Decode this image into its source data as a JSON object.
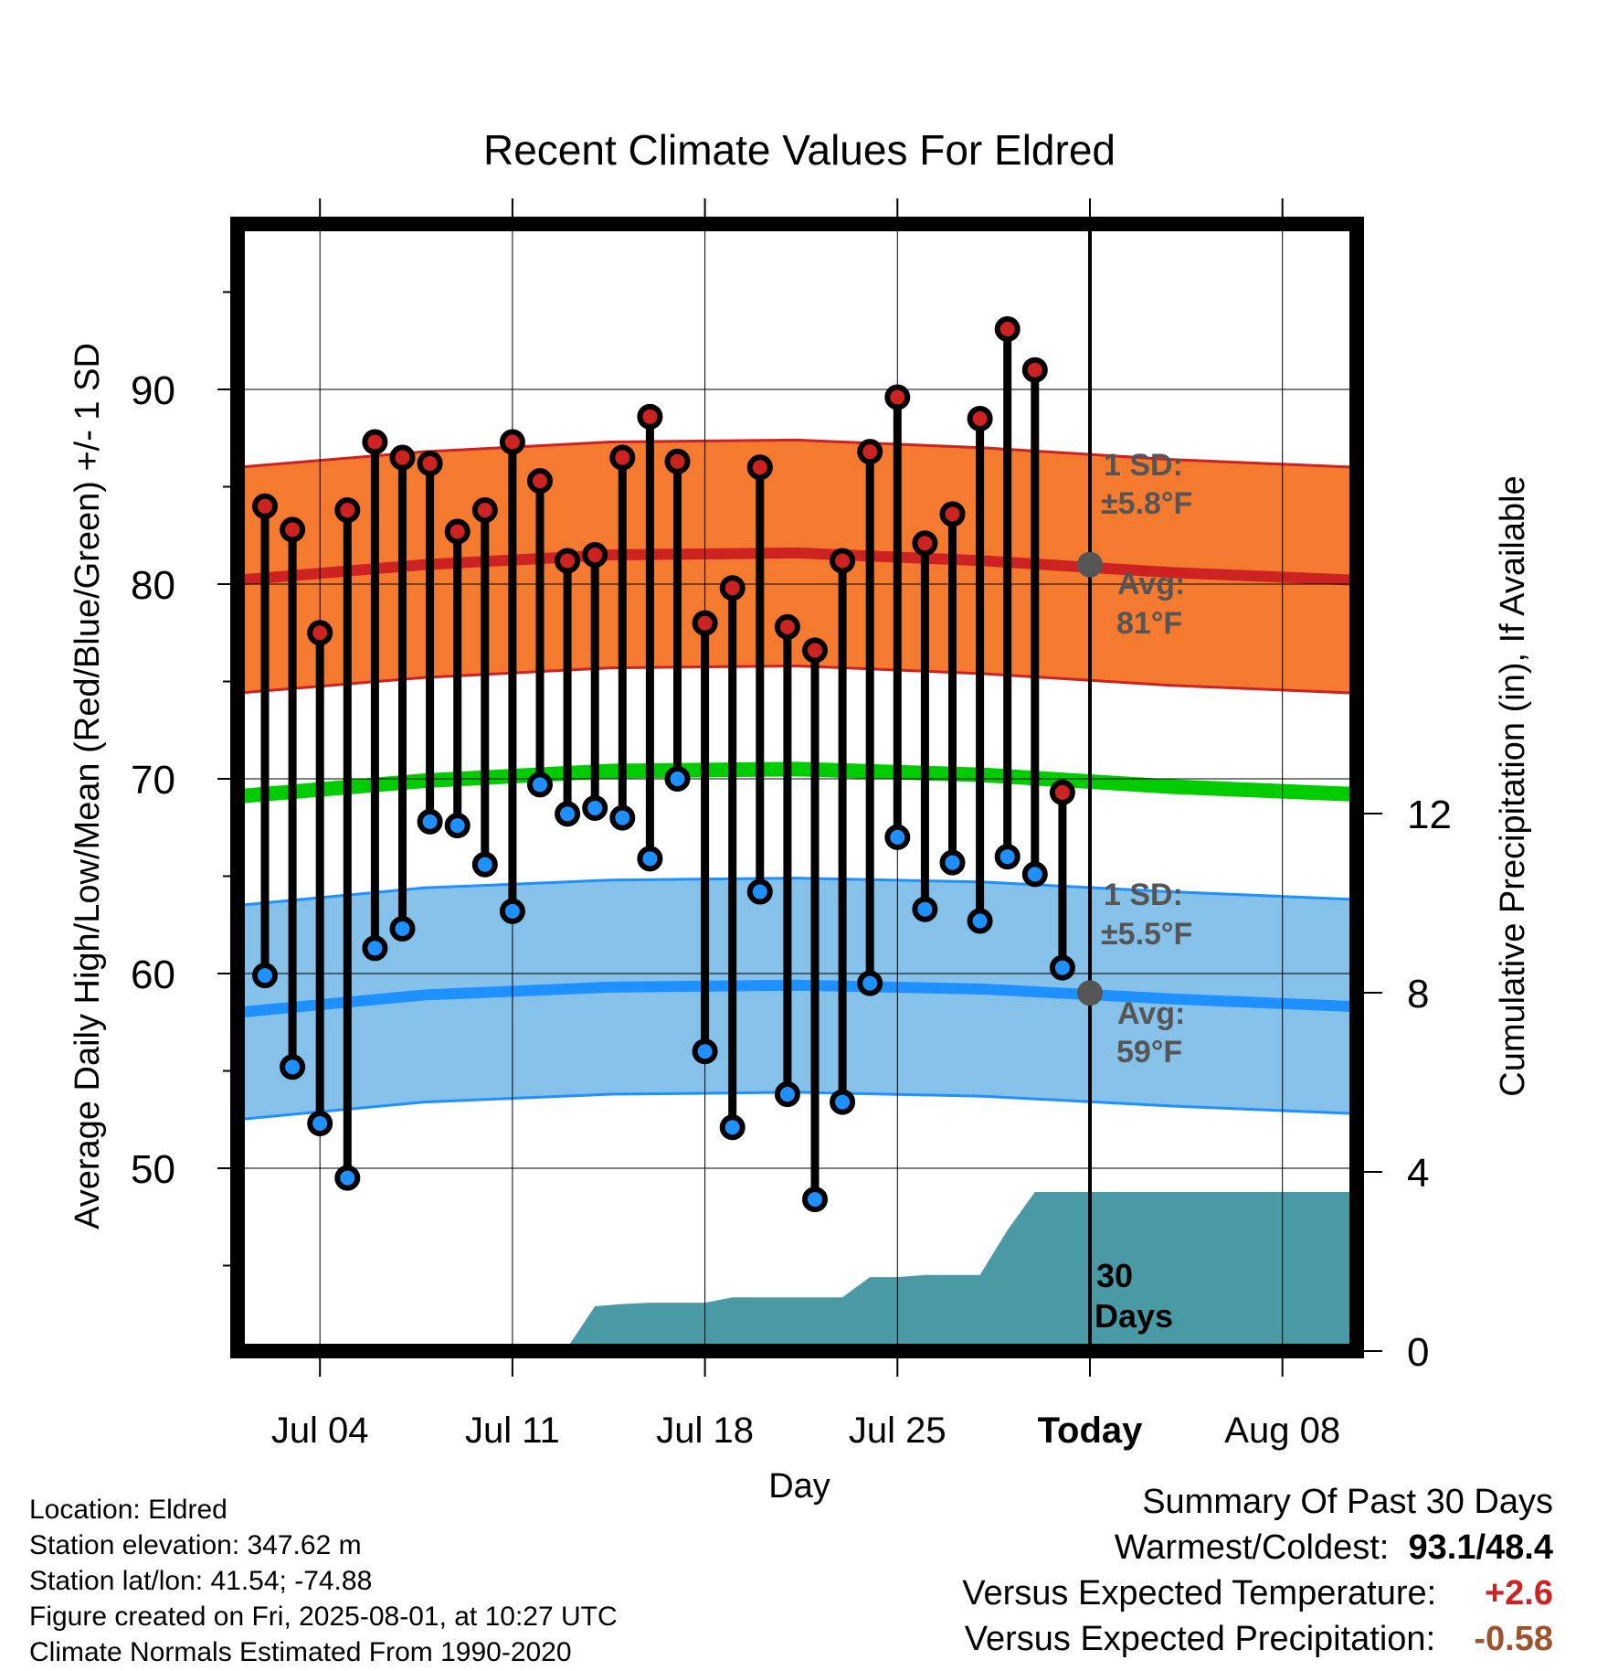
{
  "chart_data": {
    "type": "line",
    "title": "Recent Climate Values For Eldred",
    "xlabel": "Day",
    "ylabel": "Average Daily High/Low/Mean (Red/Blue/Green) +/- 1 SD",
    "y2label": "Cumulative Precipitation (in), If Available",
    "ylim": [
      40,
      98
    ],
    "y2lim": [
      0,
      26
    ],
    "x_tick_labels": [
      "Jul 04",
      "Jul 11",
      "Jul 18",
      "Jul 25",
      "Today",
      "Aug 08"
    ],
    "y_ticks": [
      50,
      60,
      70,
      80,
      90
    ],
    "y2_ticks": [
      0,
      4,
      8,
      12
    ],
    "grid": true,
    "days": [
      "Jul 02",
      "Jul 03",
      "Jul 04",
      "Jul 05",
      "Jul 06",
      "Jul 07",
      "Jul 08",
      "Jul 09",
      "Jul 10",
      "Jul 11",
      "Jul 12",
      "Jul 13",
      "Jul 14",
      "Jul 15",
      "Jul 16",
      "Jul 17",
      "Jul 18",
      "Jul 19",
      "Jul 20",
      "Jul 21",
      "Jul 22",
      "Jul 23",
      "Jul 24",
      "Jul 25",
      "Jul 26",
      "Jul 27",
      "Jul 28",
      "Jul 29",
      "Jul 30",
      "Jul 31"
    ],
    "series": [
      {
        "name": "High",
        "color": "#cc2222",
        "values": [
          84.0,
          82.8,
          77.5,
          83.8,
          87.3,
          86.5,
          86.2,
          82.7,
          83.8,
          87.3,
          85.3,
          81.2,
          81.5,
          86.5,
          88.6,
          86.3,
          78.0,
          79.8,
          86.0,
          77.8,
          76.6,
          81.2,
          86.8,
          89.6,
          82.1,
          83.6,
          88.5,
          93.1,
          91.0,
          69.3
        ]
      },
      {
        "name": "Low",
        "color": "#1e90ff",
        "values": [
          59.9,
          55.2,
          52.3,
          49.5,
          61.3,
          62.3,
          67.8,
          67.6,
          65.6,
          63.2,
          69.7,
          68.2,
          68.5,
          68.0,
          65.9,
          70.0,
          56.0,
          52.1,
          64.2,
          53.8,
          48.4,
          53.4,
          59.5,
          67.0,
          63.3,
          65.7,
          62.7,
          66.0,
          65.1,
          60.3
        ]
      }
    ],
    "normals": {
      "days": [
        "Jul 01",
        "Jul 08",
        "Jul 15",
        "Jul 22",
        "Jul 29",
        "Aug 05",
        "Aug 10"
      ],
      "high_avg": [
        80.2,
        81.0,
        81.5,
        81.6,
        81.2,
        80.6,
        80.2
      ],
      "high_sd": 5.8,
      "low_avg": [
        58.0,
        58.9,
        59.3,
        59.4,
        59.2,
        58.7,
        58.3
      ],
      "low_sd": 5.5,
      "mean_avg": [
        69.1,
        69.9,
        70.4,
        70.5,
        70.2,
        69.6,
        69.2
      ],
      "high_color": "#f47a2f",
      "low_color": "#85c1e9",
      "mean_color": "#00cc00"
    },
    "precip": {
      "color": "#4a9aa5",
      "values": [
        0.0,
        0.0,
        0.05,
        0.05,
        0.05,
        0.05,
        0.05,
        0.08,
        0.08,
        0.08,
        0.08,
        0.08,
        0.08,
        1.0,
        1.05,
        1.08,
        1.08,
        1.08,
        1.2,
        1.2,
        1.2,
        1.2,
        1.2,
        1.65,
        1.65,
        1.7,
        1.7,
        1.7,
        2.7,
        3.55,
        3.55,
        3.55,
        3.55,
        3.55,
        3.55,
        3.55,
        3.55,
        3.55,
        3.55,
        3.55,
        3.55
      ]
    },
    "annotations": {
      "high_sd_label_1": "1 SD:",
      "high_sd_label_2": "±5.8°F",
      "high_avg_label_1": "Avg:",
      "high_avg_label_2": "81°F",
      "low_sd_label_1": "1 SD:",
      "low_sd_label_2": "±5.5°F",
      "low_avg_label_1": "Avg:",
      "low_avg_label_2": "59°F",
      "days_label_1": "30",
      "days_label_2": "Days",
      "today_high_avg": 81,
      "today_low_avg": 59
    }
  },
  "footer": {
    "location": "Location: Eldred",
    "elevation": "Station elevation: 347.62 m",
    "latlon": "Station lat/lon: 41.54; -74.88",
    "created": "Figure created on Fri, 2025-08-01, at 10:27 UTC",
    "normals": "Climate Normals Estimated From 1990-2020"
  },
  "summary": {
    "title": "Summary Of Past 30 Days",
    "warm_cold_label": "Warmest/Coldest:",
    "warm_value": "93.1",
    "slash": "/",
    "cold_value": "48.4",
    "temp_label": "Versus Expected Temperature:",
    "temp_value": "+2.6",
    "temp_color": "#cc2222",
    "precip_label": "Versus Expected Precipitation:",
    "precip_value": "-0.58",
    "precip_color": "#a0522d"
  }
}
